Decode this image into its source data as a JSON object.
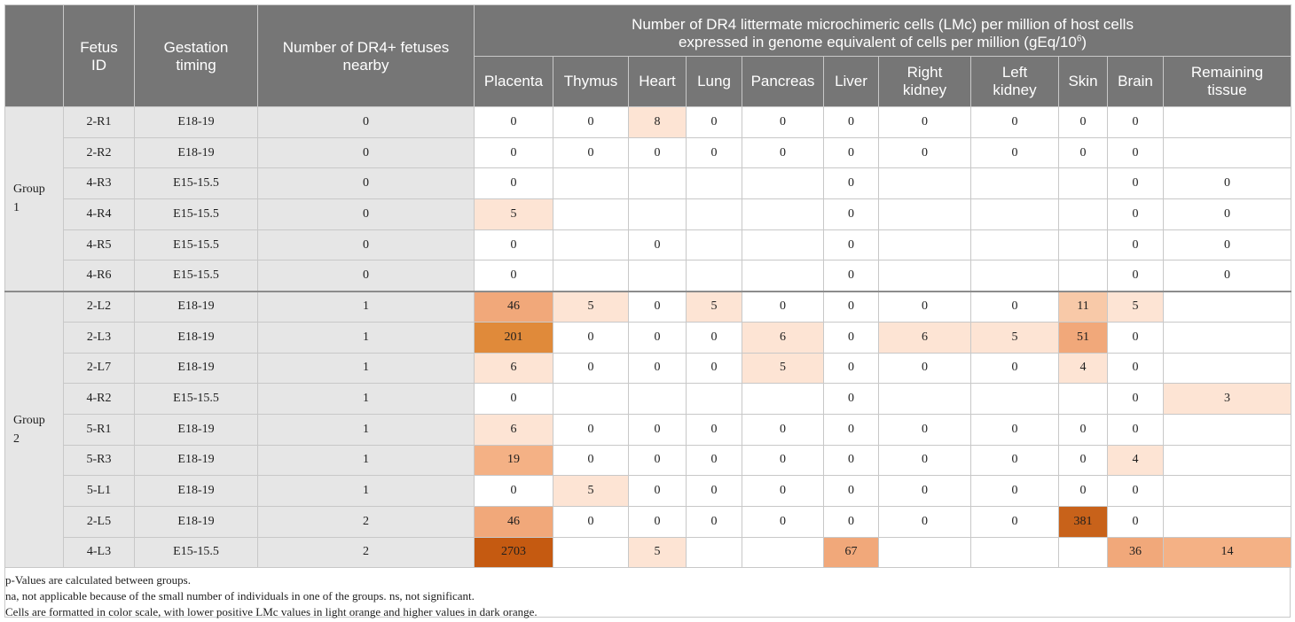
{
  "headers": {
    "fetus_id": [
      "Fetus",
      "ID"
    ],
    "gestation": [
      "Gestation",
      "timing"
    ],
    "nearby": [
      "Number of DR4+ fetuses",
      "nearby"
    ],
    "main_line1": "Number of DR4 littermate microchimeric cells (LMc) per million of host cells",
    "main_line2_prefix": "expressed in genome equivalent of cells per million (gEq/10",
    "main_line2_sup": "6",
    "main_line2_suffix": ")",
    "tissues": [
      [
        "Placenta"
      ],
      [
        "Thymus"
      ],
      [
        "Heart"
      ],
      [
        "Lung"
      ],
      [
        "Pancreas"
      ],
      [
        "Liver"
      ],
      [
        "Right",
        "kidney"
      ],
      [
        "Left",
        "kidney"
      ],
      [
        "Skin"
      ],
      [
        "Brain"
      ],
      [
        "Remaining",
        "tissue"
      ]
    ]
  },
  "groups": [
    {
      "label": [
        "Group",
        "1"
      ],
      "rows": [
        {
          "id": "2-R1",
          "gestation": "E18-19",
          "nearby": "0",
          "values": [
            "0",
            "0",
            "8",
            "0",
            "0",
            "0",
            "0",
            "0",
            "0",
            "0",
            ""
          ]
        },
        {
          "id": "2-R2",
          "gestation": "E18-19",
          "nearby": "0",
          "values": [
            "0",
            "0",
            "0",
            "0",
            "0",
            "0",
            "0",
            "0",
            "0",
            "0",
            ""
          ]
        },
        {
          "id": "4-R3",
          "gestation": "E15-15.5",
          "nearby": "0",
          "values": [
            "0",
            "",
            "",
            "",
            "",
            "0",
            "",
            "",
            "",
            "0",
            "0"
          ]
        },
        {
          "id": "4-R4",
          "gestation": "E15-15.5",
          "nearby": "0",
          "values": [
            "5",
            "",
            "",
            "",
            "",
            "0",
            "",
            "",
            "",
            "0",
            "0"
          ]
        },
        {
          "id": "4-R5",
          "gestation": "E15-15.5",
          "nearby": "0",
          "values": [
            "0",
            "",
            "0",
            "",
            "",
            "0",
            "",
            "",
            "",
            "0",
            "0"
          ]
        },
        {
          "id": "4-R6",
          "gestation": "E15-15.5",
          "nearby": "0",
          "values": [
            "0",
            "",
            "",
            "",
            "",
            "0",
            "",
            "",
            "",
            "0",
            "0"
          ]
        }
      ]
    },
    {
      "label": [
        "Group",
        "2"
      ],
      "rows": [
        {
          "id": "2-L2",
          "gestation": "E18-19",
          "nearby": "1",
          "values": [
            "46",
            "5",
            "0",
            "5",
            "0",
            "0",
            "0",
            "0",
            "11",
            "5",
            ""
          ]
        },
        {
          "id": "2-L3",
          "gestation": "E18-19",
          "nearby": "1",
          "values": [
            "201",
            "0",
            "0",
            "0",
            "6",
            "0",
            "6",
            "5",
            "51",
            "0",
            ""
          ]
        },
        {
          "id": "2-L7",
          "gestation": "E18-19",
          "nearby": "1",
          "values": [
            "6",
            "0",
            "0",
            "0",
            "5",
            "0",
            "0",
            "0",
            "4",
            "0",
            ""
          ]
        },
        {
          "id": "4-R2",
          "gestation": "E15-15.5",
          "nearby": "1",
          "values": [
            "0",
            "",
            "",
            "",
            "",
            "0",
            "",
            "",
            "",
            "0",
            "3"
          ]
        },
        {
          "id": "5-R1",
          "gestation": "E18-19",
          "nearby": "1",
          "values": [
            "6",
            "0",
            "0",
            "0",
            "0",
            "0",
            "0",
            "0",
            "0",
            "0",
            ""
          ]
        },
        {
          "id": "5-R3",
          "gestation": "E18-19",
          "nearby": "1",
          "values": [
            "19",
            "0",
            "0",
            "0",
            "0",
            "0",
            "0",
            "0",
            "0",
            "4",
            ""
          ]
        },
        {
          "id": "5-L1",
          "gestation": "E18-19",
          "nearby": "1",
          "values": [
            "0",
            "5",
            "0",
            "0",
            "0",
            "0",
            "0",
            "0",
            "0",
            "0",
            ""
          ]
        },
        {
          "id": "2-L5",
          "gestation": "E18-19",
          "nearby": "2",
          "values": [
            "46",
            "0",
            "0",
            "0",
            "0",
            "0",
            "0",
            "0",
            "381",
            "0",
            ""
          ]
        },
        {
          "id": "4-L3",
          "gestation": "E15-15.5",
          "nearby": "2",
          "values": [
            "2703",
            "",
            "5",
            "",
            "",
            "67",
            "",
            "",
            "",
            "36",
            "14"
          ]
        }
      ]
    }
  ],
  "colors": {
    "header_bg": "#767676",
    "id_column_bg": "#e6e6e6",
    "scale_light": "#fde5d6",
    "scale_mid": "#f3b081",
    "scale_dark": "#c55a11"
  },
  "notes": [
    "p-Values are calculated between groups.",
    "na, not applicable because of the small number of individuals in one of the groups. ns, not significant.",
    "Cells are formatted in color scale, with lower positive LMc values in light orange and higher values in dark orange."
  ]
}
